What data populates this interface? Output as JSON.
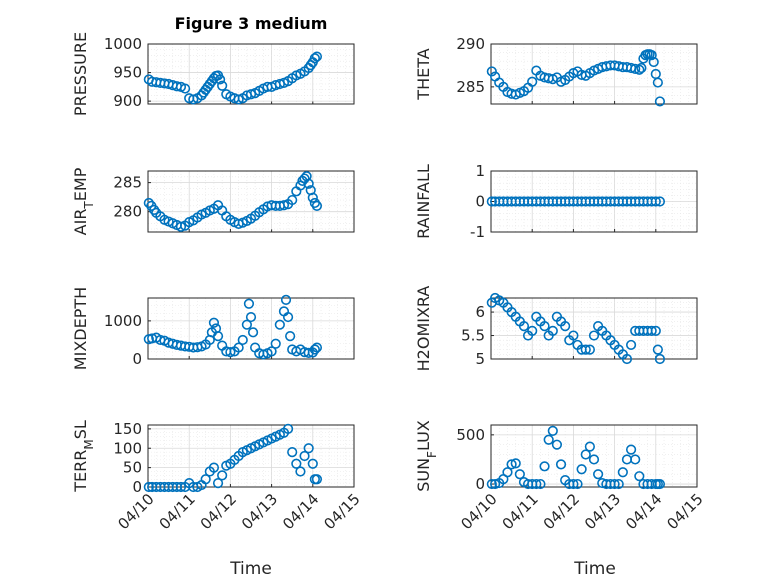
{
  "figure": {
    "marker_color": "#0072bd",
    "title": "Figure 3 medium",
    "xlabel": "Time"
  },
  "chart_data": [
    {
      "type": "scatter",
      "ylabel": "PRESSURE",
      "yticks": [
        "900",
        "950",
        "1000"
      ],
      "ylim": [
        895,
        1000
      ],
      "xlim": [
        0,
        5
      ],
      "xtick_labels": [],
      "x": [
        0.02,
        0.1,
        0.2,
        0.3,
        0.4,
        0.5,
        0.6,
        0.7,
        0.8,
        0.9,
        1.0,
        1.1,
        1.2,
        1.3,
        1.35,
        1.4,
        1.45,
        1.5,
        1.55,
        1.6,
        1.65,
        1.7,
        1.75,
        1.8,
        1.9,
        2.0,
        2.1,
        2.2,
        2.3,
        2.4,
        2.5,
        2.6,
        2.7,
        2.8,
        2.9,
        3.0,
        3.1,
        3.2,
        3.3,
        3.4,
        3.5,
        3.6,
        3.7,
        3.8,
        3.9,
        3.95,
        4.0,
        4.05,
        4.1
      ],
      "y": [
        938,
        934,
        933,
        932,
        931,
        930,
        928,
        926,
        925,
        922,
        905,
        903,
        905,
        910,
        915,
        920,
        925,
        930,
        935,
        940,
        944,
        945,
        938,
        927,
        912,
        908,
        905,
        903,
        905,
        910,
        912,
        914,
        918,
        922,
        925,
        925,
        928,
        930,
        932,
        935,
        940,
        945,
        948,
        952,
        958,
        963,
        968,
        975,
        978
      ]
    },
    {
      "type": "scatter",
      "ylabel": "THETA",
      "yticks": [
        "285",
        "290"
      ],
      "ylim": [
        283,
        290
      ],
      "xlim": [
        0,
        5
      ],
      "xtick_labels": [],
      "x": [
        0.02,
        0.1,
        0.2,
        0.3,
        0.4,
        0.5,
        0.6,
        0.7,
        0.8,
        0.9,
        1.0,
        1.1,
        1.2,
        1.3,
        1.4,
        1.5,
        1.6,
        1.7,
        1.8,
        1.9,
        2.0,
        2.1,
        2.2,
        2.3,
        2.4,
        2.5,
        2.6,
        2.7,
        2.8,
        2.9,
        3.0,
        3.1,
        3.2,
        3.3,
        3.4,
        3.5,
        3.6,
        3.65,
        3.7,
        3.75,
        3.8,
        3.85,
        3.9,
        3.95,
        4.0,
        4.05,
        4.1
      ],
      "y": [
        286.8,
        286.2,
        285.5,
        285.0,
        284.4,
        284.2,
        284.1,
        284.3,
        284.5,
        284.9,
        285.6,
        286.9,
        286.3,
        286.1,
        286.0,
        285.9,
        286.1,
        285.6,
        285.8,
        286.2,
        286.6,
        286.8,
        286.4,
        286.3,
        286.6,
        286.9,
        287.1,
        287.3,
        287.4,
        287.5,
        287.5,
        287.4,
        287.3,
        287.3,
        287.2,
        287.1,
        287.0,
        287.2,
        288.3,
        288.7,
        288.8,
        288.8,
        288.7,
        287.9,
        286.5,
        285.5,
        283.3
      ]
    },
    {
      "type": "scatter",
      "ylabel": "AIR_TEMP",
      "yticks": [
        "280",
        "285"
      ],
      "ylim": [
        276.5,
        287
      ],
      "xlim": [
        0,
        5
      ],
      "xtick_labels": [],
      "x": [
        0.02,
        0.08,
        0.15,
        0.2,
        0.3,
        0.4,
        0.5,
        0.6,
        0.7,
        0.8,
        0.9,
        1.0,
        1.1,
        1.2,
        1.3,
        1.4,
        1.5,
        1.6,
        1.7,
        1.8,
        1.9,
        2.0,
        2.1,
        2.2,
        2.3,
        2.4,
        2.5,
        2.6,
        2.7,
        2.8,
        2.9,
        3.0,
        3.1,
        3.2,
        3.3,
        3.4,
        3.5,
        3.6,
        3.7,
        3.75,
        3.8,
        3.85,
        3.9,
        3.95,
        4.0,
        4.05,
        4.1
      ],
      "y": [
        281.5,
        281.0,
        280.3,
        279.8,
        279.2,
        278.6,
        278.3,
        278.0,
        277.7,
        277.4,
        277.6,
        278.2,
        278.5,
        279.0,
        279.5,
        279.8,
        280.2,
        280.5,
        281.1,
        280.2,
        279.2,
        278.6,
        278.2,
        277.9,
        278.1,
        278.4,
        278.8,
        279.3,
        279.9,
        280.4,
        280.9,
        281.1,
        281.0,
        281.0,
        281.1,
        281.3,
        282.0,
        283.5,
        284.5,
        285.3,
        285.7,
        286.1,
        284.8,
        283.7,
        282.4,
        281.5,
        281.0
      ]
    },
    {
      "type": "scatter",
      "ylabel": "RAINFALL",
      "yticks": [
        "-1",
        "0",
        "1"
      ],
      "ylim": [
        -1,
        1
      ],
      "xlim": [
        0,
        5
      ],
      "xtick_labels": [],
      "x": [
        0.02,
        0.1,
        0.2,
        0.3,
        0.4,
        0.5,
        0.6,
        0.7,
        0.8,
        0.9,
        1.0,
        1.1,
        1.2,
        1.3,
        1.4,
        1.5,
        1.6,
        1.7,
        1.8,
        1.9,
        2.0,
        2.1,
        2.2,
        2.3,
        2.4,
        2.5,
        2.6,
        2.7,
        2.8,
        2.9,
        3.0,
        3.1,
        3.2,
        3.3,
        3.4,
        3.5,
        3.6,
        3.7,
        3.8,
        3.9,
        4.0,
        4.1
      ],
      "y": [
        0,
        0,
        0,
        0,
        0,
        0,
        0,
        0,
        0,
        0,
        0,
        0,
        0,
        0,
        0,
        0,
        0,
        0,
        0,
        0,
        0,
        0,
        0,
        0,
        0,
        0,
        0,
        0,
        0,
        0,
        0,
        0,
        0,
        0,
        0,
        0,
        0,
        0,
        0,
        0,
        0,
        0
      ]
    },
    {
      "type": "scatter",
      "ylabel": "MIXDEPTH",
      "yticks": [
        "0",
        "1000"
      ],
      "ylim": [
        0,
        1600
      ],
      "xlim": [
        0,
        5
      ],
      "xtick_labels": [],
      "x": [
        0.02,
        0.1,
        0.2,
        0.3,
        0.4,
        0.5,
        0.6,
        0.7,
        0.8,
        0.9,
        1.0,
        1.1,
        1.2,
        1.3,
        1.4,
        1.5,
        1.55,
        1.6,
        1.65,
        1.7,
        1.8,
        1.9,
        2.0,
        2.1,
        2.2,
        2.3,
        2.4,
        2.45,
        2.5,
        2.55,
        2.6,
        2.7,
        2.8,
        2.9,
        3.0,
        3.1,
        3.2,
        3.3,
        3.35,
        3.4,
        3.45,
        3.5,
        3.6,
        3.7,
        3.8,
        3.9,
        4.0,
        4.05,
        4.1
      ],
      "y": [
        520,
        540,
        560,
        500,
        480,
        430,
        400,
        370,
        350,
        330,
        320,
        300,
        310,
        330,
        380,
        500,
        700,
        950,
        800,
        600,
        350,
        200,
        180,
        200,
        300,
        500,
        900,
        1450,
        1100,
        700,
        300,
        150,
        120,
        150,
        200,
        400,
        900,
        1250,
        1550,
        1100,
        600,
        250,
        200,
        250,
        180,
        160,
        170,
        250,
        300
      ]
    },
    {
      "type": "scatter",
      "ylabel": "H2OMIXRA",
      "yticks": [
        "5",
        "5.5",
        "6"
      ],
      "ylim": [
        5,
        6.3
      ],
      "xlim": [
        0,
        5
      ],
      "xtick_labels": [],
      "x": [
        0.02,
        0.1,
        0.2,
        0.3,
        0.4,
        0.5,
        0.6,
        0.7,
        0.8,
        0.9,
        1.0,
        1.1,
        1.2,
        1.3,
        1.4,
        1.5,
        1.6,
        1.7,
        1.8,
        1.9,
        2.0,
        2.1,
        2.2,
        2.3,
        2.4,
        2.5,
        2.6,
        2.7,
        2.8,
        2.9,
        3.0,
        3.1,
        3.2,
        3.3,
        3.4,
        3.5,
        3.6,
        3.7,
        3.8,
        3.9,
        4.0,
        4.05,
        4.1
      ],
      "y": [
        6.2,
        6.3,
        6.25,
        6.2,
        6.1,
        6.0,
        5.9,
        5.8,
        5.7,
        5.5,
        5.6,
        5.9,
        5.8,
        5.7,
        5.5,
        5.6,
        5.9,
        5.8,
        5.7,
        5.4,
        5.5,
        5.3,
        5.2,
        5.2,
        5.2,
        5.5,
        5.7,
        5.6,
        5.5,
        5.4,
        5.3,
        5.2,
        5.1,
        5.0,
        5.3,
        5.6,
        5.6,
        5.6,
        5.6,
        5.6,
        5.6,
        5.2,
        5.0
      ]
    },
    {
      "type": "scatter",
      "ylabel": "TERR_MSL",
      "yticks": [
        "0",
        "50",
        "100",
        "150"
      ],
      "ylim": [
        0,
        160
      ],
      "xlim": [
        0,
        5
      ],
      "xtick_labels": [
        "04/10",
        "04/11",
        "04/12",
        "04/13",
        "04/14",
        "04/15"
      ],
      "x": [
        0.02,
        0.1,
        0.2,
        0.3,
        0.4,
        0.5,
        0.6,
        0.7,
        0.8,
        0.9,
        1.0,
        1.1,
        1.2,
        1.3,
        1.4,
        1.5,
        1.6,
        1.7,
        1.8,
        1.9,
        2.0,
        2.1,
        2.2,
        2.3,
        2.4,
        2.5,
        2.6,
        2.7,
        2.8,
        2.9,
        3.0,
        3.1,
        3.2,
        3.3,
        3.4,
        3.5,
        3.6,
        3.7,
        3.8,
        3.9,
        4.0,
        4.05,
        4.1
      ],
      "y": [
        0,
        0,
        0,
        0,
        0,
        0,
        0,
        0,
        0,
        0,
        10,
        0,
        0,
        5,
        20,
        40,
        50,
        10,
        30,
        55,
        60,
        70,
        80,
        90,
        95,
        100,
        105,
        110,
        115,
        120,
        125,
        130,
        135,
        140,
        150,
        90,
        60,
        40,
        80,
        100,
        60,
        20,
        20
      ]
    },
    {
      "type": "scatter",
      "ylabel": "SUN_FLUX",
      "yticks": [
        "0",
        "500"
      ],
      "ylim": [
        -30,
        600
      ],
      "xlim": [
        0,
        5
      ],
      "xtick_labels": [
        "04/10",
        "04/11",
        "04/12",
        "04/13",
        "04/14",
        "04/15"
      ],
      "x": [
        0.02,
        0.1,
        0.2,
        0.3,
        0.4,
        0.5,
        0.6,
        0.7,
        0.8,
        0.9,
        1.0,
        1.1,
        1.2,
        1.3,
        1.4,
        1.5,
        1.6,
        1.7,
        1.8,
        1.9,
        2.0,
        2.1,
        2.2,
        2.3,
        2.4,
        2.5,
        2.6,
        2.7,
        2.8,
        2.9,
        3.0,
        3.1,
        3.2,
        3.3,
        3.4,
        3.5,
        3.6,
        3.7,
        3.8,
        3.9,
        4.0,
        4.05,
        4.1
      ],
      "y": [
        0,
        0,
        10,
        50,
        120,
        200,
        210,
        100,
        20,
        0,
        0,
        0,
        0,
        180,
        450,
        540,
        400,
        200,
        40,
        0,
        0,
        0,
        150,
        300,
        380,
        250,
        100,
        10,
        0,
        0,
        0,
        0,
        120,
        250,
        350,
        250,
        80,
        0,
        0,
        0,
        0,
        0,
        0
      ]
    }
  ]
}
